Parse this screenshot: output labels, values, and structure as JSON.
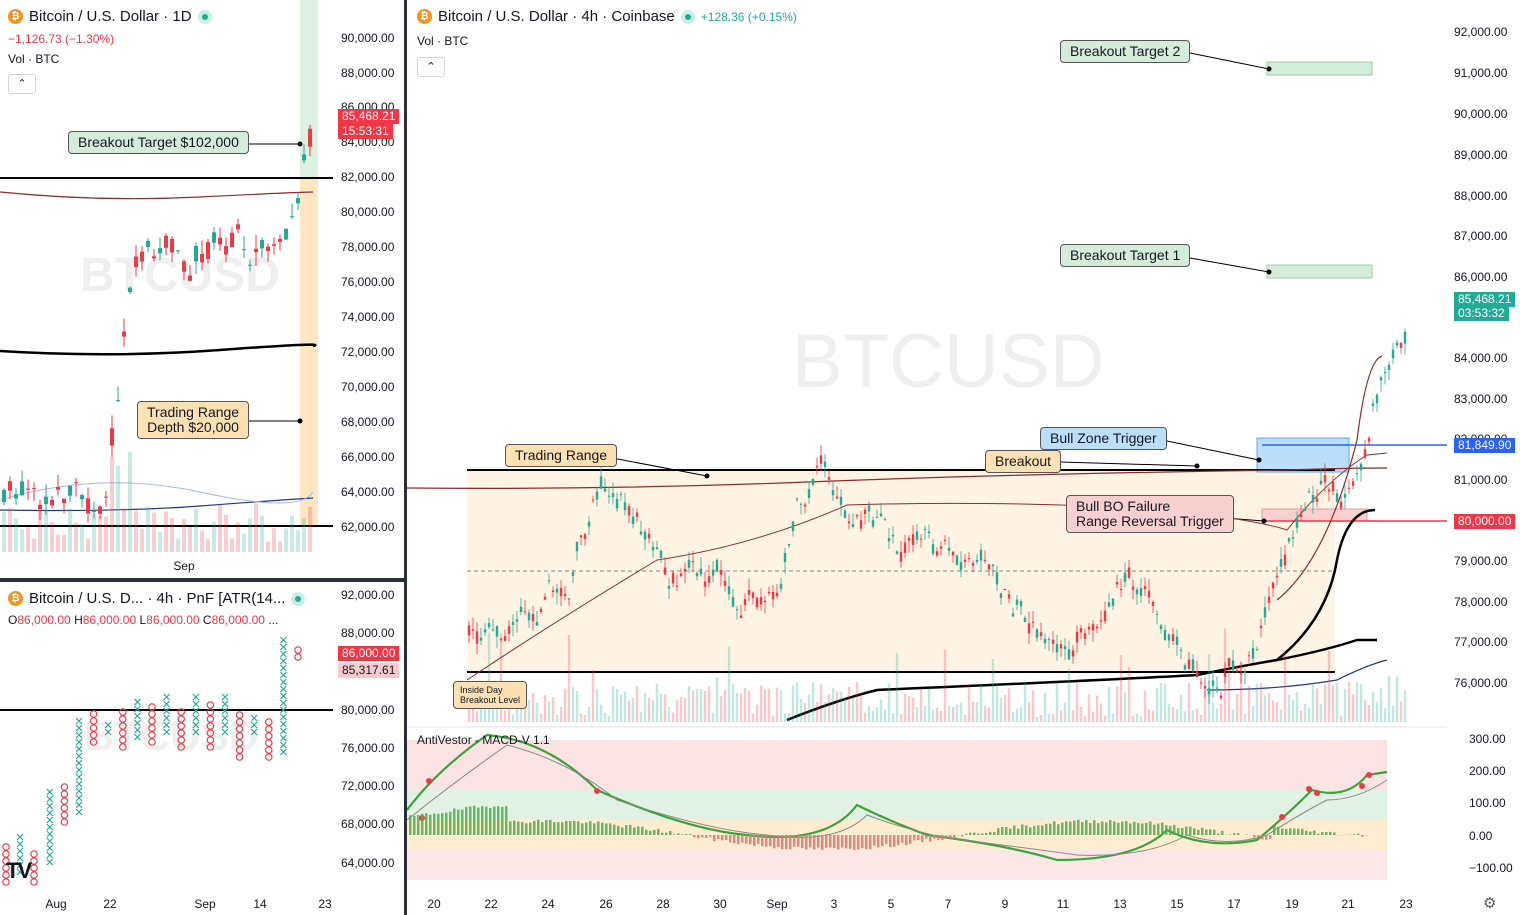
{
  "left_top": {
    "title": "Bitcoin / U.S. Dollar · 1D",
    "change": "−1,126.73 (−1.30%)",
    "vol": "Vol · BTC",
    "watermark": "BTCUSD",
    "price_tag": "85,468.21",
    "countdown": "15:53:31",
    "yticks": [
      "90,000.00",
      "88,000.00",
      "86,000.00",
      "84,000.00",
      "82,000.00",
      "80,000.00",
      "78,000.00",
      "76,000.00",
      "74,000.00",
      "72,000.00",
      "70,000.00",
      "68,000.00",
      "66,000.00",
      "64,000.00",
      "62,000.00"
    ],
    "xtick": "Sep",
    "notes": {
      "target": "Breakout Target $102,000",
      "range_line1": "Trading Range",
      "range_line2": "Depth $20,000"
    }
  },
  "left_bottom": {
    "title": "Bitcoin / U.S. D... · 4h · PnF [ATR(14...",
    "ohlc": {
      "o_label": "O",
      "o": "86,000.00",
      "h_label": "H",
      "h": "86,000.00",
      "l_label": "L",
      "l": "86,000.00",
      "c_label": "C",
      "c": "86,000.00",
      "more": "..."
    },
    "watermark": "BTCUSD",
    "price_tag_1": "86,000.00",
    "price_tag_2": "85,317.61",
    "yticks": [
      "92,000.00",
      "88,000.00",
      "84,000.00",
      "80,000.00",
      "76,000.00",
      "72,000.00",
      "68,000.00",
      "64,000.00"
    ],
    "xticks": [
      "Aug",
      "22",
      "Sep",
      "14",
      "23"
    ]
  },
  "main": {
    "title": "Bitcoin / U.S. Dollar · 4h · Coinbase",
    "change": "+128.36 (+0.15%)",
    "vol": "Vol · BTC",
    "watermark": "BTCUSD",
    "price_tag": "85,468.21",
    "countdown": "03:53:32",
    "tag_blue": "81,849.90",
    "tag_red": "80,000.00",
    "yticks": [
      "92,000.00",
      "91,000.00",
      "90,000.00",
      "89,000.00",
      "88,000.00",
      "87,000.00",
      "86,000.00",
      "84,000.00",
      "83,000.00",
      "82,000.00",
      "81,000.00",
      "79,000.00",
      "78,000.00",
      "77,000.00",
      "76,000.00"
    ],
    "xticks": [
      "20",
      "22",
      "24",
      "26",
      "28",
      "30",
      "Sep",
      "3",
      "5",
      "7",
      "9",
      "11",
      "13",
      "15",
      "17",
      "19",
      "21",
      "23"
    ],
    "notes": {
      "target2": "Breakout Target 2",
      "target1": "Breakout Target 1",
      "bull_zone": "Bull Zone Trigger",
      "breakout": "Breakout",
      "trading_range": "Trading Range",
      "failure_line1": "Bull BO Failure",
      "failure_line2": "Range Reversal Trigger",
      "inside_line1": "Inside Day",
      "inside_line2": "Breakout Level"
    },
    "indicator": {
      "name": "AntiVestor - MACD-V 1.1",
      "yticks": [
        "300.00",
        "200.00",
        "100.00",
        "0.00",
        "−100.00"
      ]
    }
  }
}
